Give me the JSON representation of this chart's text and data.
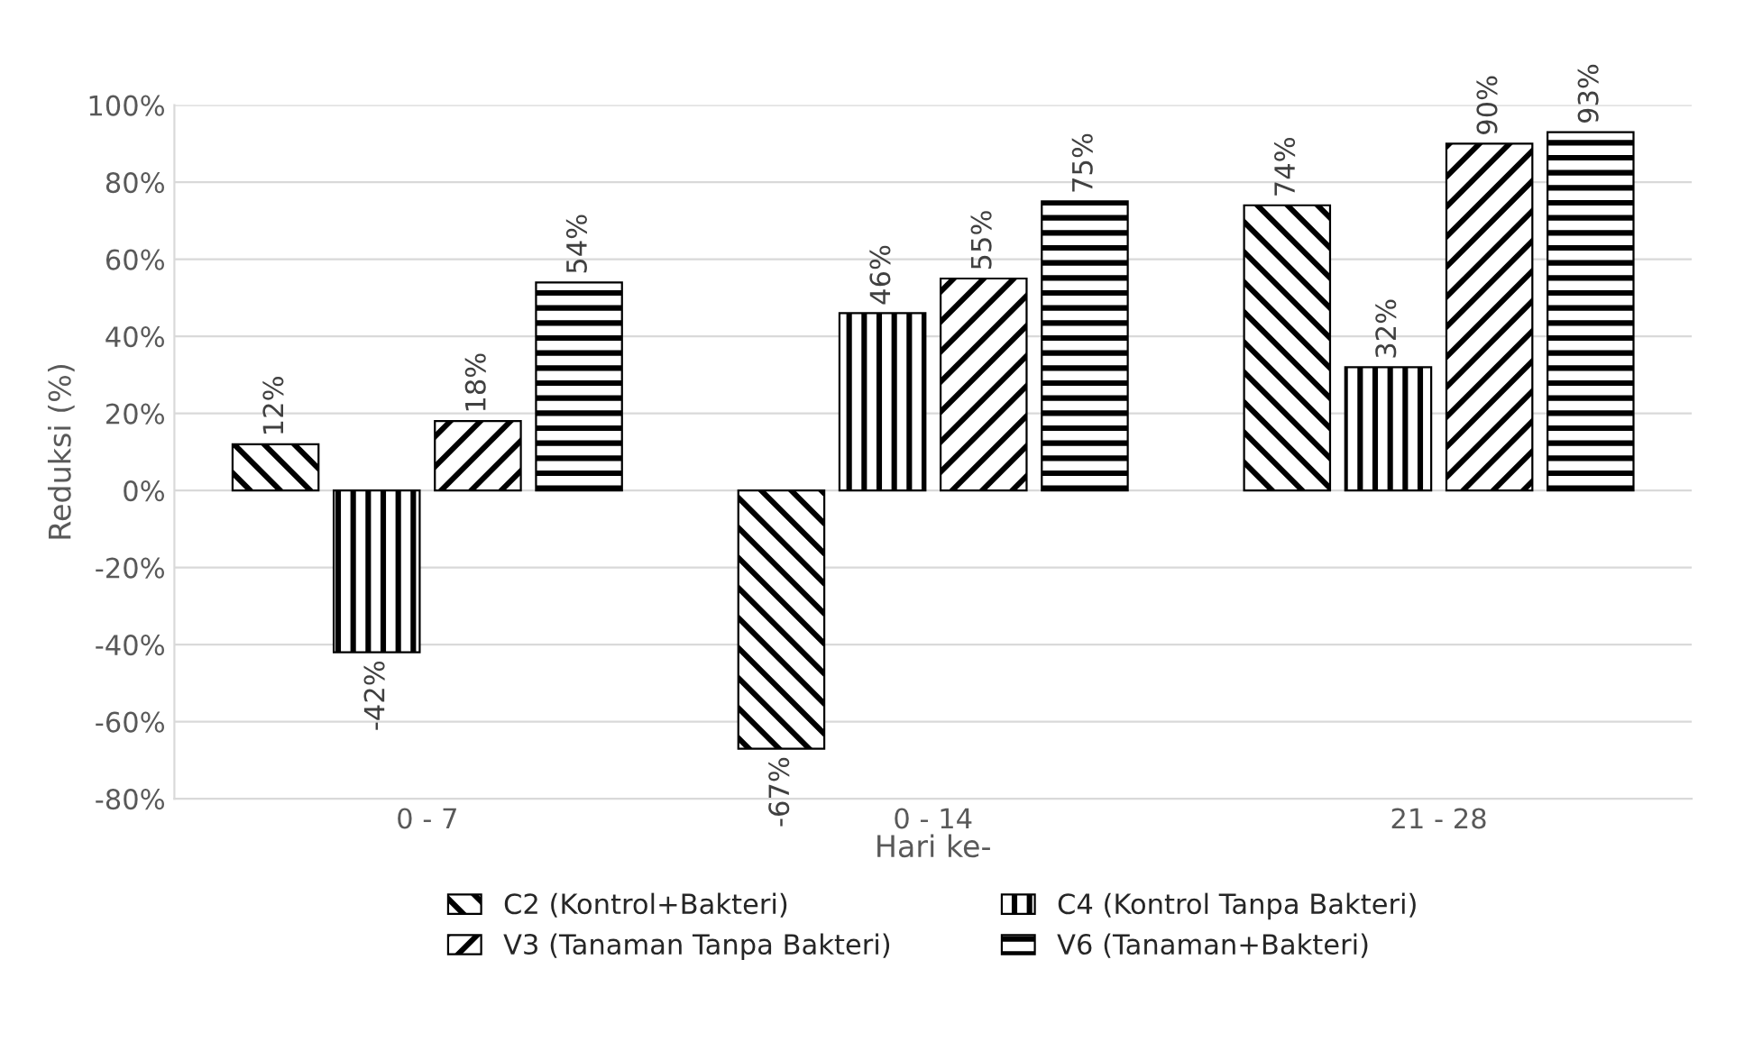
{
  "chart_data": {
    "type": "bar",
    "xlabel": "Hari ke-",
    "ylabel": "Reduksi (%)",
    "categories": [
      "0 - 7",
      "0 - 14",
      "21 - 28"
    ],
    "series": [
      {
        "name": "C2 (Kontrol+Bakteri)",
        "color": "#000000",
        "values": [
          12,
          -67,
          74
        ],
        "value_labels": [
          "12%",
          "-67%",
          "74%"
        ]
      },
      {
        "name": "C4 (Kontrol Tanpa Bakteri)",
        "color": "#000000",
        "values": [
          -42,
          46,
          32
        ],
        "value_labels": [
          "-42%",
          "46%",
          "32%"
        ]
      },
      {
        "name": "V3 (Tanaman Tanpa Bakteri)",
        "color": "#000000",
        "values": [
          18,
          55,
          90
        ],
        "value_labels": [
          "18%",
          "55%",
          "90%"
        ]
      },
      {
        "name": "V6 (Tanaman+Bakteri)",
        "color": "#000000",
        "values": [
          54,
          75,
          93
        ],
        "value_labels": [
          "54%",
          "75%",
          "93%"
        ]
      }
    ],
    "ylim": [
      -80,
      100
    ],
    "yticks": [
      {
        "value": -80,
        "label": "-80%"
      },
      {
        "value": -60,
        "label": "-60%"
      },
      {
        "value": -40,
        "label": "-40%"
      },
      {
        "value": -20,
        "label": "-20%"
      },
      {
        "value": 0,
        "label": "0%"
      },
      {
        "value": 20,
        "label": "20%"
      },
      {
        "value": 40,
        "label": "40%"
      },
      {
        "value": 60,
        "label": "60%"
      },
      {
        "value": 80,
        "label": "80%"
      },
      {
        "value": 100,
        "label": "100%"
      }
    ],
    "grid": "y",
    "legend": "bottom"
  }
}
